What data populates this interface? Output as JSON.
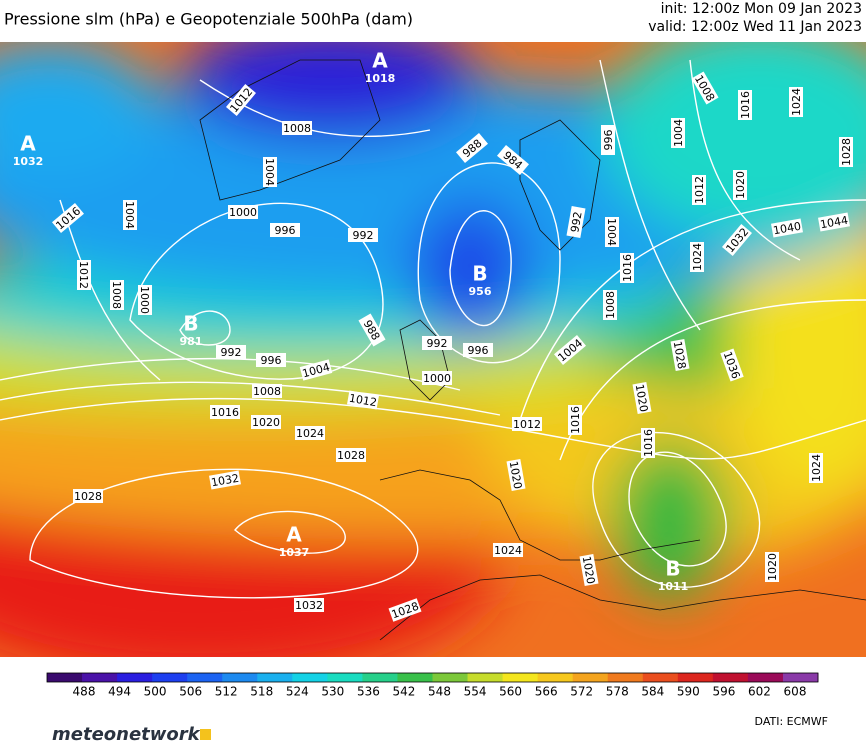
{
  "header": {
    "title": "Pressione slm (hPa) e Geopotenziale 500hPa (dam)",
    "init": "init: 12:00z Mon 09 Jan 2023",
    "valid": "valid: 12:00z Wed 11 Jan 2023"
  },
  "centers": [
    {
      "label": "A",
      "value": "1018"
    },
    {
      "label": "A",
      "value": "1032"
    },
    {
      "label": "B",
      "value": "956"
    },
    {
      "label": "B",
      "value": "981"
    },
    {
      "label": "A",
      "value": "1037"
    },
    {
      "label": "B",
      "value": "1011"
    }
  ],
  "isobar_labels": [
    "1012",
    "1008",
    "1004",
    "1000",
    "996",
    "992",
    "988",
    "984",
    "1016",
    "1004",
    "1012",
    "1008",
    "1000",
    "992",
    "996",
    "1004",
    "988",
    "992",
    "996",
    "1000",
    "1008",
    "1012",
    "1016",
    "1020",
    "1024",
    "1028",
    "1012",
    "1016",
    "1020",
    "1032",
    "1028",
    "1024",
    "1032",
    "1028",
    "1020",
    "1016",
    "1020",
    "1024",
    "1020",
    "1028",
    "1036",
    "1004",
    "1008",
    "1016",
    "1024",
    "1032",
    "1040",
    "1044",
    "992",
    "996",
    "1004",
    "1004",
    "1012",
    "1020",
    "1028",
    "1016",
    "1024",
    "1008"
  ],
  "colorbar": {
    "ticks": [
      488,
      494,
      500,
      506,
      512,
      518,
      524,
      530,
      536,
      542,
      548,
      554,
      560,
      566,
      572,
      578,
      584,
      590,
      596,
      602,
      608
    ],
    "colors": [
      "#3a0a6e",
      "#4a12a8",
      "#2a1ee0",
      "#1d3ff0",
      "#1c63f2",
      "#1d8af0",
      "#1ab0ee",
      "#14d2e6",
      "#19dcc0",
      "#26d08a",
      "#39c04a",
      "#7cc83a",
      "#c6dc2c",
      "#f4e61e",
      "#f6c81e",
      "#f4a41e",
      "#f07a1e",
      "#ea4e1e",
      "#dc261e",
      "#c01030",
      "#9a0a58",
      "#8a3aa8"
    ]
  },
  "footer": {
    "brand": "meteonetwork",
    "source": "DATI:  ECMWF"
  }
}
